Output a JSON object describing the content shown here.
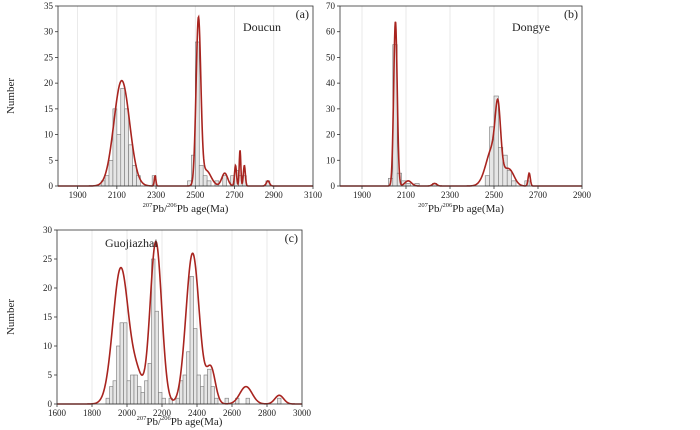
{
  "chart_data": [
    {
      "type": "bar",
      "panel_label": "(a)",
      "title": "Doucun",
      "xlabel_sup1": "207",
      "xlabel_mid": "Pb/",
      "xlabel_sup2": "206",
      "xlabel_rest": "Pb age(Ma)",
      "ylabel": "Number",
      "xlim": [
        1800,
        3100
      ],
      "ylim": [
        0,
        35
      ],
      "xticks": [
        1900,
        2100,
        2300,
        2500,
        2700,
        2900,
        3100
      ],
      "yticks": [
        0,
        5,
        10,
        15,
        20,
        25,
        30,
        35
      ],
      "bin_width": 20,
      "bars": [
        {
          "x": 2030,
          "v": 1
        },
        {
          "x": 2050,
          "v": 2
        },
        {
          "x": 2070,
          "v": 5
        },
        {
          "x": 2090,
          "v": 15
        },
        {
          "x": 2110,
          "v": 10
        },
        {
          "x": 2130,
          "v": 19
        },
        {
          "x": 2150,
          "v": 15
        },
        {
          "x": 2170,
          "v": 8
        },
        {
          "x": 2190,
          "v": 4
        },
        {
          "x": 2210,
          "v": 2
        },
        {
          "x": 2290,
          "v": 2
        },
        {
          "x": 2470,
          "v": 1
        },
        {
          "x": 2490,
          "v": 6
        },
        {
          "x": 2510,
          "v": 28
        },
        {
          "x": 2530,
          "v": 4
        },
        {
          "x": 2550,
          "v": 2
        },
        {
          "x": 2570,
          "v": 1
        },
        {
          "x": 2610,
          "v": 1
        },
        {
          "x": 2650,
          "v": 2
        },
        {
          "x": 2690,
          "v": 2
        },
        {
          "x": 2710,
          "v": 3
        },
        {
          "x": 2730,
          "v": 2
        },
        {
          "x": 2750,
          "v": 2
        },
        {
          "x": 2870,
          "v": 1
        }
      ],
      "curve_peaks": [
        {
          "mu": 2125,
          "sigma": 40,
          "amp": 20.5
        },
        {
          "mu": 2295,
          "sigma": 4,
          "amp": 2
        },
        {
          "mu": 2516,
          "sigma": 12,
          "amp": 32
        },
        {
          "mu": 2555,
          "sigma": 25,
          "amp": 3
        },
        {
          "mu": 2650,
          "sigma": 15,
          "amp": 2.5
        },
        {
          "mu": 2705,
          "sigma": 5,
          "amp": 4
        },
        {
          "mu": 2728,
          "sigma": 4,
          "amp": 7
        },
        {
          "mu": 2750,
          "sigma": 5,
          "amp": 4
        },
        {
          "mu": 2870,
          "sigma": 8,
          "amp": 1
        }
      ]
    },
    {
      "type": "bar",
      "panel_label": "(b)",
      "title": "Dongye",
      "xlabel_sup1": "207",
      "xlabel_mid": "Pb/",
      "xlabel_sup2": "206",
      "xlabel_rest": "Pb age(Ma)",
      "ylabel": "",
      "xlim": [
        1800,
        2900
      ],
      "ylim": [
        0,
        70
      ],
      "xticks": [
        1900,
        2100,
        2300,
        2500,
        2700,
        2900
      ],
      "yticks": [
        0,
        10,
        20,
        30,
        40,
        50,
        60,
        70
      ],
      "bin_width": 20,
      "bars": [
        {
          "x": 2030,
          "v": 3
        },
        {
          "x": 2050,
          "v": 55
        },
        {
          "x": 2070,
          "v": 5
        },
        {
          "x": 2090,
          "v": 2
        },
        {
          "x": 2110,
          "v": 1
        },
        {
          "x": 2150,
          "v": 1
        },
        {
          "x": 2230,
          "v": 1
        },
        {
          "x": 2470,
          "v": 4
        },
        {
          "x": 2490,
          "v": 23
        },
        {
          "x": 2510,
          "v": 35
        },
        {
          "x": 2530,
          "v": 15
        },
        {
          "x": 2550,
          "v": 12
        },
        {
          "x": 2570,
          "v": 6
        },
        {
          "x": 2590,
          "v": 2
        },
        {
          "x": 2650,
          "v": 2
        }
      ],
      "curve_peaks": [
        {
          "mu": 2052,
          "sigma": 8,
          "amp": 64
        },
        {
          "mu": 2110,
          "sigma": 15,
          "amp": 2
        },
        {
          "mu": 2230,
          "sigma": 10,
          "amp": 1
        },
        {
          "mu": 2495,
          "sigma": 30,
          "amp": 15
        },
        {
          "mu": 2518,
          "sigma": 12,
          "amp": 22
        },
        {
          "mu": 2570,
          "sigma": 22,
          "amp": 6
        },
        {
          "mu": 2660,
          "sigma": 5,
          "amp": 5
        }
      ]
    },
    {
      "type": "bar",
      "panel_label": "(c)",
      "title": "Guojiazhai",
      "xlabel_sup1": "207",
      "xlabel_mid": "Pb/",
      "xlabel_sup2": "206",
      "xlabel_rest": "Pb age(Ma)",
      "ylabel": "Number",
      "xlim": [
        1600,
        3000
      ],
      "ylim": [
        0,
        30
      ],
      "xticks": [
        1600,
        1800,
        2000,
        2200,
        2400,
        2600,
        2800,
        3000
      ],
      "yticks": [
        0,
        5,
        10,
        15,
        20,
        25,
        30
      ],
      "bin_width": 20,
      "bars": [
        {
          "x": 1890,
          "v": 1
        },
        {
          "x": 1910,
          "v": 3
        },
        {
          "x": 1930,
          "v": 4
        },
        {
          "x": 1950,
          "v": 10
        },
        {
          "x": 1970,
          "v": 14
        },
        {
          "x": 1990,
          "v": 14
        },
        {
          "x": 2010,
          "v": 4
        },
        {
          "x": 2030,
          "v": 5
        },
        {
          "x": 2050,
          "v": 5
        },
        {
          "x": 2070,
          "v": 3
        },
        {
          "x": 2090,
          "v": 2
        },
        {
          "x": 2110,
          "v": 4
        },
        {
          "x": 2130,
          "v": 7
        },
        {
          "x": 2150,
          "v": 25
        },
        {
          "x": 2170,
          "v": 16
        },
        {
          "x": 2190,
          "v": 2
        },
        {
          "x": 2210,
          "v": 1
        },
        {
          "x": 2250,
          "v": 1
        },
        {
          "x": 2290,
          "v": 1
        },
        {
          "x": 2310,
          "v": 4
        },
        {
          "x": 2330,
          "v": 5
        },
        {
          "x": 2350,
          "v": 9
        },
        {
          "x": 2370,
          "v": 22
        },
        {
          "x": 2390,
          "v": 13
        },
        {
          "x": 2410,
          "v": 5
        },
        {
          "x": 2430,
          "v": 3
        },
        {
          "x": 2450,
          "v": 5
        },
        {
          "x": 2470,
          "v": 6
        },
        {
          "x": 2490,
          "v": 3
        },
        {
          "x": 2510,
          "v": 1
        },
        {
          "x": 2570,
          "v": 1
        },
        {
          "x": 2630,
          "v": 1
        },
        {
          "x": 2690,
          "v": 1
        },
        {
          "x": 2870,
          "v": 1
        }
      ],
      "curve_peaks": [
        {
          "mu": 1965,
          "sigma": 45,
          "amp": 23.5
        },
        {
          "mu": 2060,
          "sigma": 30,
          "amp": 4
        },
        {
          "mu": 2165,
          "sigma": 33,
          "amp": 28
        },
        {
          "mu": 2375,
          "sigma": 38,
          "amp": 26
        },
        {
          "mu": 2480,
          "sigma": 25,
          "amp": 6
        },
        {
          "mu": 2680,
          "sigma": 35,
          "amp": 3
        },
        {
          "mu": 2870,
          "sigma": 25,
          "amp": 1.5
        }
      ]
    }
  ]
}
